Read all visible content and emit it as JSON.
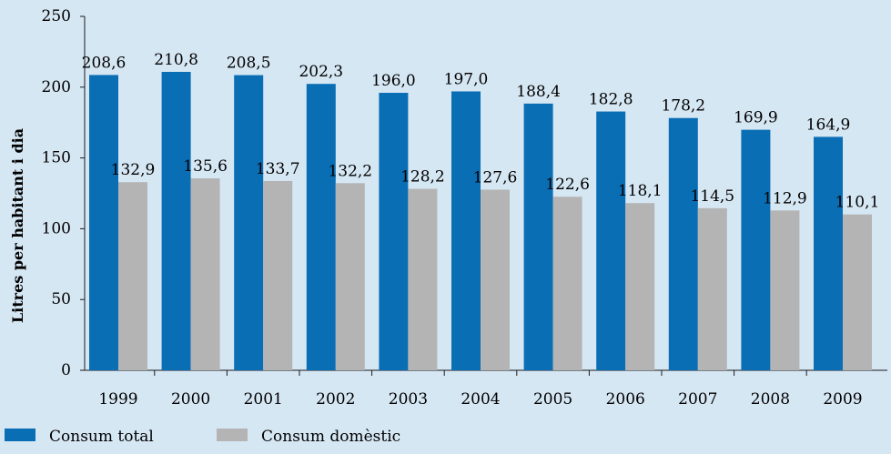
{
  "chart_data": {
    "type": "bar",
    "title": "",
    "xlabel": "",
    "ylabel": "Litres per habitant i dia",
    "ylim": [
      0,
      250
    ],
    "yticks": [
      0,
      50,
      100,
      150,
      200,
      250
    ],
    "categories": [
      "1999",
      "2000",
      "2001",
      "2002",
      "2003",
      "2004",
      "2005",
      "2006",
      "2007",
      "2008",
      "2009"
    ],
    "series": [
      {
        "name": "Consum total",
        "color": "#0a6eb4",
        "values": [
          208.6,
          210.8,
          208.5,
          202.3,
          196.0,
          197.0,
          188.4,
          182.8,
          178.2,
          169.9,
          164.9
        ],
        "labels": [
          "208,6",
          "210,8",
          "208,5",
          "202,3",
          "196,0",
          "197,0",
          "188,4",
          "182,8",
          "178,2",
          "169,9",
          "164,9"
        ]
      },
      {
        "name": "Consum domèstic",
        "color": "#b4b4b4",
        "values": [
          132.9,
          135.6,
          133.7,
          132.2,
          128.2,
          127.6,
          122.6,
          118.1,
          114.5,
          112.9,
          110.1
        ],
        "labels": [
          "132,9",
          "135,6",
          "133,7",
          "132,2",
          "128,2",
          "127,6",
          "122,6",
          "118,1",
          "114,5",
          "112,9",
          "110,1"
        ]
      }
    ],
    "legend": {
      "placement": "bottom-left"
    },
    "grid": false,
    "background": "#d6e7f4"
  }
}
